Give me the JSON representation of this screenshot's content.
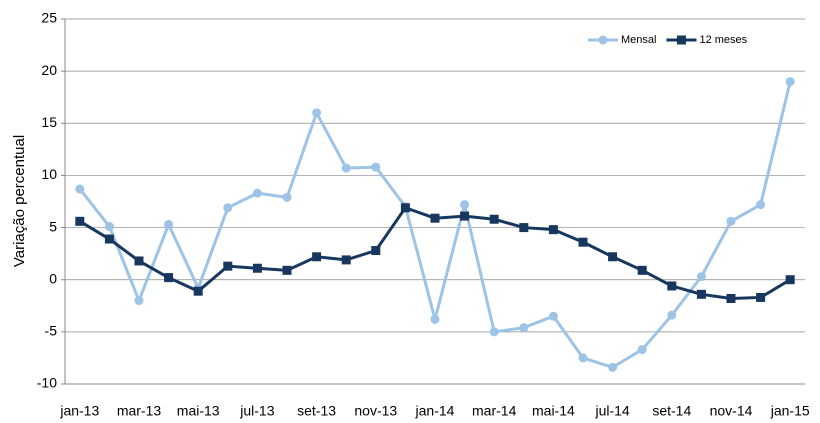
{
  "chart_data": {
    "type": "line",
    "y_label": "Variação percentual",
    "categories": [
      "jan-13",
      null,
      "mar-13",
      null,
      "mai-13",
      null,
      "jul-13",
      null,
      "set-13",
      null,
      "nov-13",
      null,
      "jan-14",
      null,
      "mar-14",
      null,
      "mai-14",
      null,
      "jul-14",
      null,
      "set-14",
      null,
      "nov-14",
      null,
      "jan-15"
    ],
    "series": [
      {
        "name": "Mensal",
        "color": "#9dc3e6",
        "marker": "circle",
        "values": [
          8.7,
          5.1,
          -2.0,
          5.3,
          -0.8,
          6.9,
          8.3,
          7.9,
          16.0,
          10.7,
          10.8,
          7.0,
          -3.8,
          7.2,
          -5.0,
          -4.6,
          -3.5,
          -7.5,
          -8.4,
          -6.7,
          -3.4,
          0.3,
          5.6,
          7.2,
          19.0
        ]
      },
      {
        "name": "12 meses",
        "color": "#17375e",
        "marker": "square",
        "values": [
          5.6,
          3.9,
          1.8,
          0.2,
          -1.1,
          1.3,
          1.1,
          0.9,
          2.2,
          1.9,
          2.8,
          6.9,
          5.9,
          6.1,
          5.8,
          5.0,
          4.8,
          3.6,
          2.2,
          0.9,
          -0.6,
          -1.4,
          -1.8,
          -1.7,
          0.0
        ]
      }
    ],
    "ylim": [
      -10,
      25
    ],
    "yticks": [
      -10,
      -5,
      0,
      5,
      10,
      15,
      20,
      25
    ],
    "grid": true,
    "legend": "top-right"
  }
}
